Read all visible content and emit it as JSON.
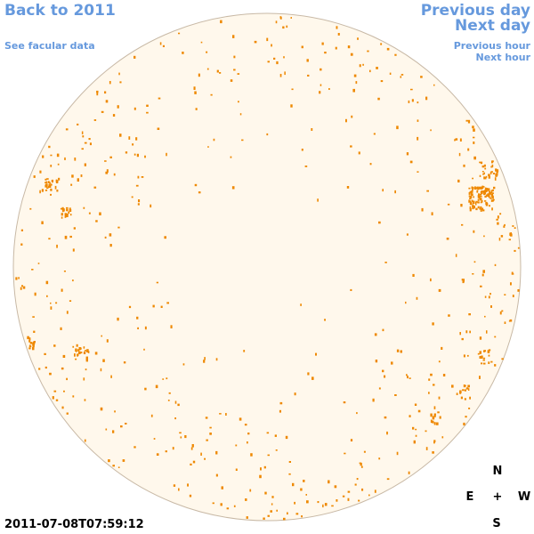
{
  "nav": {
    "back_label": "Back to 2011",
    "facular_label": "See facular data",
    "prev_day_label": "Previous day",
    "next_day_label": "Next day",
    "prev_hour_label": "Previous hour",
    "next_hour_label": "Next hour"
  },
  "timestamp": "2011-07-08T07:59:12",
  "compass": {
    "north": "N",
    "south": "S",
    "east": "E",
    "west": "W",
    "center": "+"
  },
  "colors": {
    "link": "#6699dd",
    "disk_fill": "#fff8ec",
    "disk_border": "#c8b9a6",
    "feature": "#ee8800"
  }
}
